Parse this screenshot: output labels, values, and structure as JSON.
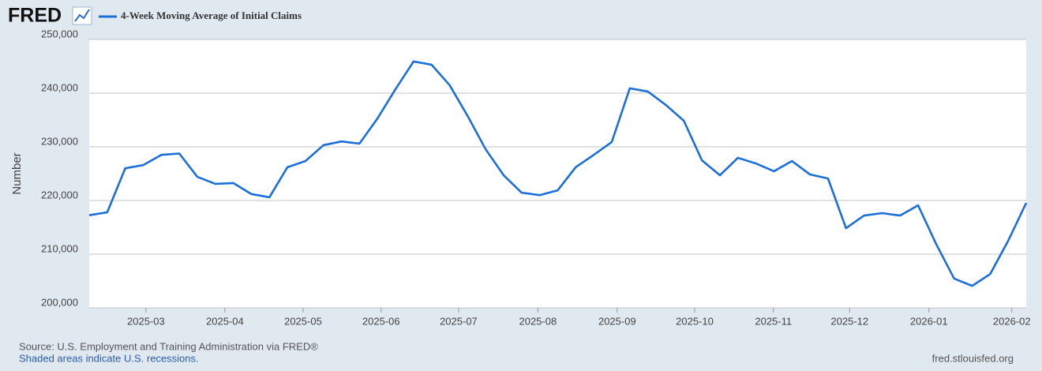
{
  "logo": "FRED",
  "chart_data": {
    "type": "line",
    "ylabel": "Number",
    "categories": [
      null,
      null,
      null,
      null,
      null,
      null,
      null,
      null,
      null,
      null,
      null,
      null,
      null,
      null,
      null,
      null,
      null,
      null,
      null,
      null,
      null,
      null,
      null,
      null,
      null,
      null,
      null,
      null,
      null,
      null,
      null,
      null,
      null,
      null,
      null,
      null,
      null,
      null,
      null,
      null,
      null,
      null,
      null,
      null,
      null,
      null,
      null,
      null,
      null,
      null,
      null,
      null,
      null
    ],
    "series": [
      {
        "name": "4-Week Moving Average of Initial Claims",
        "color": "#1b6fd8",
        "values": [
          217250,
          217800,
          226000,
          226600,
          228500,
          228750,
          224400,
          223100,
          223250,
          221200,
          220600,
          226200,
          227350,
          230300,
          231000,
          230600,
          235300,
          240750,
          245900,
          245300,
          241500,
          235750,
          229550,
          224700,
          221450,
          221000,
          221900,
          226200,
          228500,
          230900,
          240900,
          240300,
          237800,
          234850,
          227500,
          224700,
          227950,
          226900,
          225450,
          227350,
          224850,
          224100,
          214850,
          217200,
          217650,
          217200,
          219100,
          211900,
          205450,
          204100,
          206300,
          212500,
          219550
        ]
      }
    ],
    "xlim": [
      0,
      52
    ],
    "xticks": [
      {
        "value": 3.15,
        "label": "2025-03"
      },
      {
        "value": 7.53,
        "label": "2025-04"
      },
      {
        "value": 11.87,
        "label": "2025-05"
      },
      {
        "value": 16.2,
        "label": "2025-06"
      },
      {
        "value": 20.5,
        "label": "2025-07"
      },
      {
        "value": 24.9,
        "label": "2025-08"
      },
      {
        "value": 29.3,
        "label": "2025-09"
      },
      {
        "value": 33.6,
        "label": "2025-10"
      },
      {
        "value": 37.97,
        "label": "2025-11"
      },
      {
        "value": 42.2,
        "label": "2025-12"
      },
      {
        "value": 46.6,
        "label": "2026-01"
      },
      {
        "value": 51.2,
        "label": "2026-02"
      }
    ],
    "ylim": [
      200000,
      250000
    ],
    "yticks": [
      {
        "value": 200000,
        "label": "200,000"
      },
      {
        "value": 210000,
        "label": "210,000"
      },
      {
        "value": 220000,
        "label": "220,000"
      },
      {
        "value": 230000,
        "label": "230,000"
      },
      {
        "value": 240000,
        "label": "240,000"
      },
      {
        "value": 250000,
        "label": "250,000"
      }
    ],
    "grid": true
  },
  "source": "Source: U.S. Employment and Training Administration via FRED®",
  "note": "Shaded areas indicate U.S. recessions.",
  "site": "fred.stlouisfed.org"
}
